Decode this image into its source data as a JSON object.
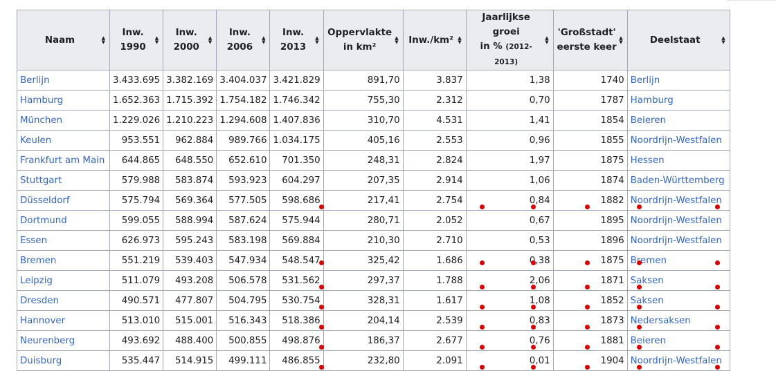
{
  "table": {
    "headers": [
      {
        "l1": "Naam",
        "l2": "",
        "l3": ""
      },
      {
        "l1": "Inw.",
        "l2": "1990",
        "l3": ""
      },
      {
        "l1": "Inw.",
        "l2": "2000",
        "l3": ""
      },
      {
        "l1": "Inw.",
        "l2": "2006",
        "l3": ""
      },
      {
        "l1": "Inw.",
        "l2": "2013",
        "l3": ""
      },
      {
        "l1": "Oppervlakte",
        "l2": "in km²",
        "l3": ""
      },
      {
        "l1": "Inw./km²",
        "l2": "",
        "l3": ""
      },
      {
        "l1": "Jaarlijkse",
        "l2": "groei",
        "l3": "in %",
        "l3sub": "(2012-2013)"
      },
      {
        "l1": "'Großstadt'",
        "l2": "eerste keer",
        "l3": ""
      },
      {
        "l1": "Deelstaat",
        "l2": "",
        "l3": ""
      }
    ],
    "rows": [
      [
        "Berlijn",
        "3.433.695",
        "3.382.169",
        "3.404.037",
        "3.421.829",
        "891,70",
        "3.837",
        "1,38",
        "1740",
        "Berlijn"
      ],
      [
        "Hamburg",
        "1.652.363",
        "1.715.392",
        "1.754.182",
        "1.746.342",
        "755,30",
        "2.312",
        "0,70",
        "1787",
        "Hamburg"
      ],
      [
        "München",
        "1.229.026",
        "1.210.223",
        "1.294.608",
        "1.407.836",
        "310,70",
        "4.531",
        "1,41",
        "1854",
        "Beieren"
      ],
      [
        "Keulen",
        "953.551",
        "962.884",
        "989.766",
        "1.034.175",
        "405,16",
        "2.553",
        "0,96",
        "1855",
        "Noordrijn-Westfalen"
      ],
      [
        "Frankfurt am Main",
        "644.865",
        "648.550",
        "652.610",
        "701.350",
        "248,31",
        "2.824",
        "1,97",
        "1875",
        "Hessen"
      ],
      [
        "Stuttgart",
        "579.988",
        "583.874",
        "593.923",
        "604.297",
        "207,35",
        "2.914",
        "1,06",
        "1874",
        "Baden-Württemberg"
      ],
      [
        "Düsseldorf",
        "575.794",
        "569.364",
        "577.505",
        "598.686",
        "217,41",
        "2.754",
        "0,84",
        "1882",
        "Noordrijn-Westfalen"
      ],
      [
        "Dortmund",
        "599.055",
        "588.994",
        "587.624",
        "575.944",
        "280,71",
        "2.052",
        "0,67",
        "1895",
        "Noordrijn-Westfalen"
      ],
      [
        "Essen",
        "626.973",
        "595.243",
        "583.198",
        "569.884",
        "210,30",
        "2.710",
        "0,53",
        "1896",
        "Noordrijn-Westfalen"
      ],
      [
        "Bremen",
        "551.219",
        "539.403",
        "547.934",
        "548.547",
        "325,42",
        "1.686",
        "0,38",
        "1875",
        "Bremen"
      ],
      [
        "Leipzig",
        "511.079",
        "493.208",
        "506.578",
        "531.562",
        "297,37",
        "1.788",
        "2,06",
        "1871",
        "Saksen"
      ],
      [
        "Dresden",
        "490.571",
        "477.807",
        "504.795",
        "530.754",
        "328,31",
        "1.617",
        "1,08",
        "1852",
        "Saksen"
      ],
      [
        "Hannover",
        "513.010",
        "515.001",
        "516.343",
        "518.386",
        "204,14",
        "2.539",
        "0,83",
        "1873",
        "Nedersaksen"
      ],
      [
        "Neurenberg",
        "493.692",
        "488.400",
        "500.855",
        "498.876",
        "186,37",
        "2.677",
        "0,76",
        "1881",
        "Beieren"
      ],
      [
        "Duisburg",
        "535.447",
        "514.915",
        "499.111",
        "486.855",
        "232,80",
        "2.091",
        "0,01",
        "1904",
        "Noordrijn-Westfalen"
      ]
    ]
  },
  "colors": {
    "link": "#3366cc",
    "header_bg": "#eaecf0",
    "border": "#a2a9b1",
    "marker": "#e00000"
  }
}
